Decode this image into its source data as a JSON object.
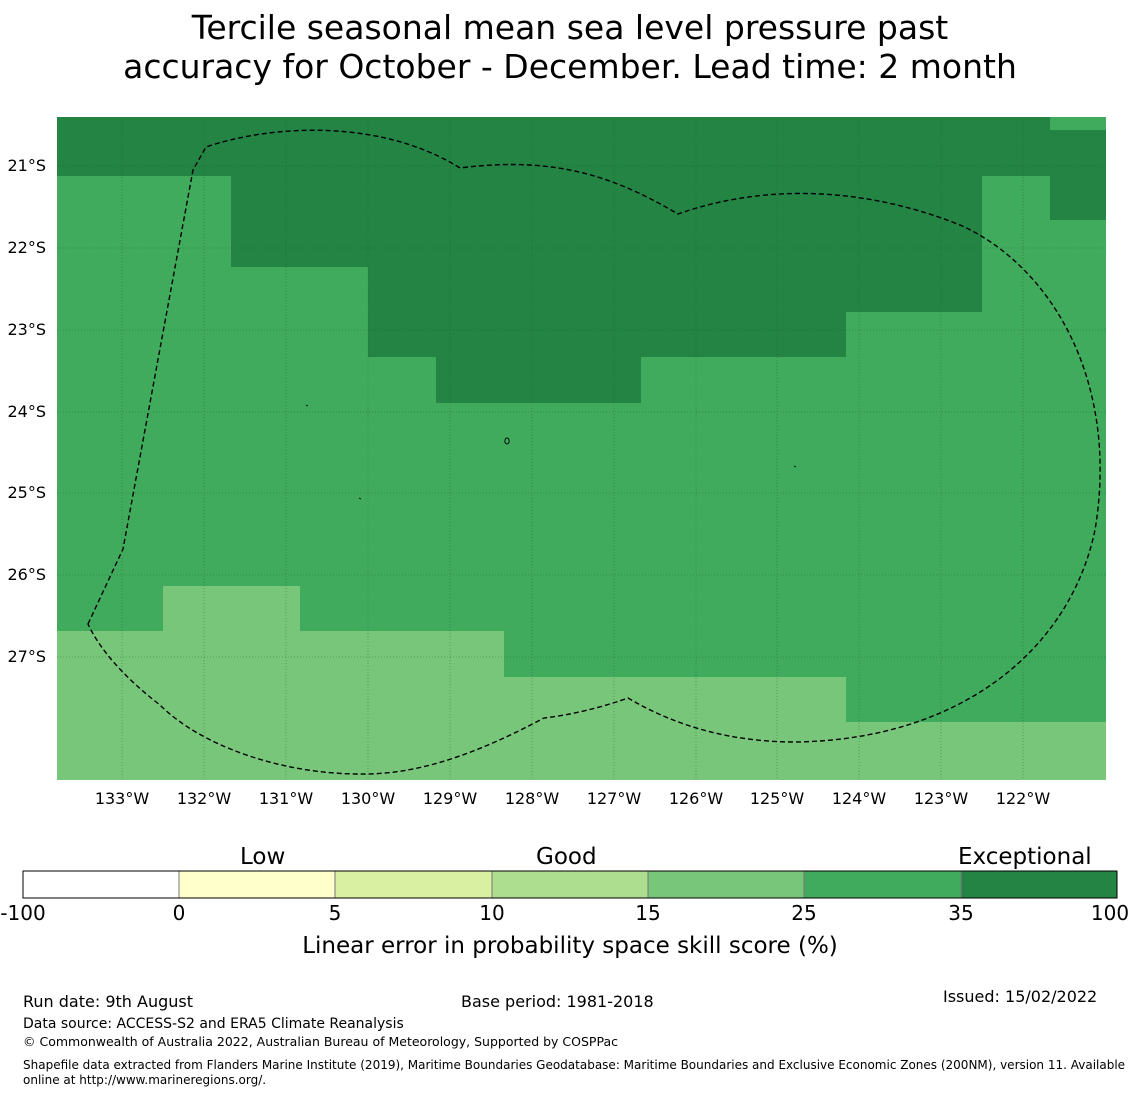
{
  "title": {
    "line1": "Tercile seasonal mean sea level pressure past",
    "line2": "accuracy for October - December. Lead time: 2 month"
  },
  "map": {
    "lat_labels": [
      "21°S",
      "22°S",
      "23°S",
      "24°S",
      "25°S",
      "26°S",
      "27°S"
    ],
    "lon_labels": [
      "133°W",
      "132°W",
      "131°W",
      "130°W",
      "129°W",
      "128°W",
      "127°W",
      "126°W",
      "125°W",
      "124°W",
      "123°W",
      "122°W"
    ],
    "lat_range": [
      "20.6°S",
      "28.3°S"
    ],
    "lon_range": [
      "133.8°W",
      "121.0°W"
    ],
    "boundary_style": "dashed",
    "region_colors": {
      "score_25_35": "#41AB5D",
      "score_15_25": "#78C679",
      "score_35_100": "#238443"
    }
  },
  "colorbar": {
    "headings": [
      "Low",
      "Good",
      "Exceptional"
    ],
    "ticks": [
      "-100",
      "0",
      "5",
      "10",
      "15",
      "25",
      "35",
      "100"
    ],
    "colors": [
      "#FFFFFF",
      "#FFFFCC",
      "#D9F0A3",
      "#ADDD8E",
      "#78C679",
      "#41AB5D",
      "#238443"
    ],
    "label": "Linear error in probability space skill score (%)"
  },
  "footer": {
    "run_date": "Run date: 9th August",
    "base_period": "Base period: 1981-2018",
    "issued": "Issued: 15/02/2022",
    "data_source": "Data source: ACCESS-S2 and ERA5 Climate Reanalysis",
    "copyright": "© Commonwealth of Australia 2022, Australian Bureau of Meteorology, Supported by COSPPac",
    "shapefile_line1": "Shapefile data extracted from Flanders Marine Institute (2019), Maritime Boundaries Geodatabase: Maritime Boundaries and Exclusive Economic Zones (200NM), version 11. Available",
    "shapefile_line2": "online at http://www.marineregions.org/."
  }
}
